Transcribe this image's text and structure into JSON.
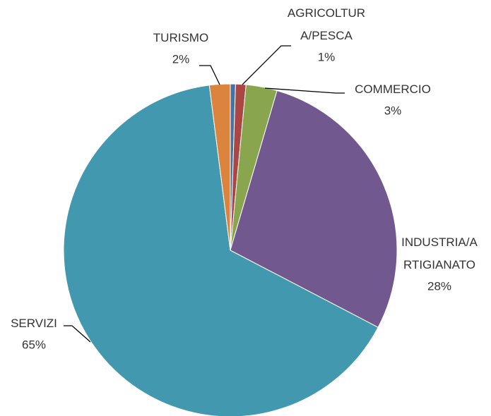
{
  "chart_data": {
    "type": "pie",
    "categories": [
      null,
      "AGRICOLTUR\nA/PESCA",
      "COMMERCIO",
      "INDUSTRIA/A\nRTIGIANATO",
      "SERVIZI",
      "TURISMO"
    ],
    "values": [
      0.5,
      1,
      3,
      28,
      65,
      2
    ],
    "value_labels": [
      null,
      "1%",
      "3%",
      "28%",
      "65%",
      "2%"
    ],
    "colors": [
      "#4572a7",
      "#aa4643",
      "#89a54e",
      "#71588f",
      "#4198af",
      "#db843d"
    ]
  }
}
